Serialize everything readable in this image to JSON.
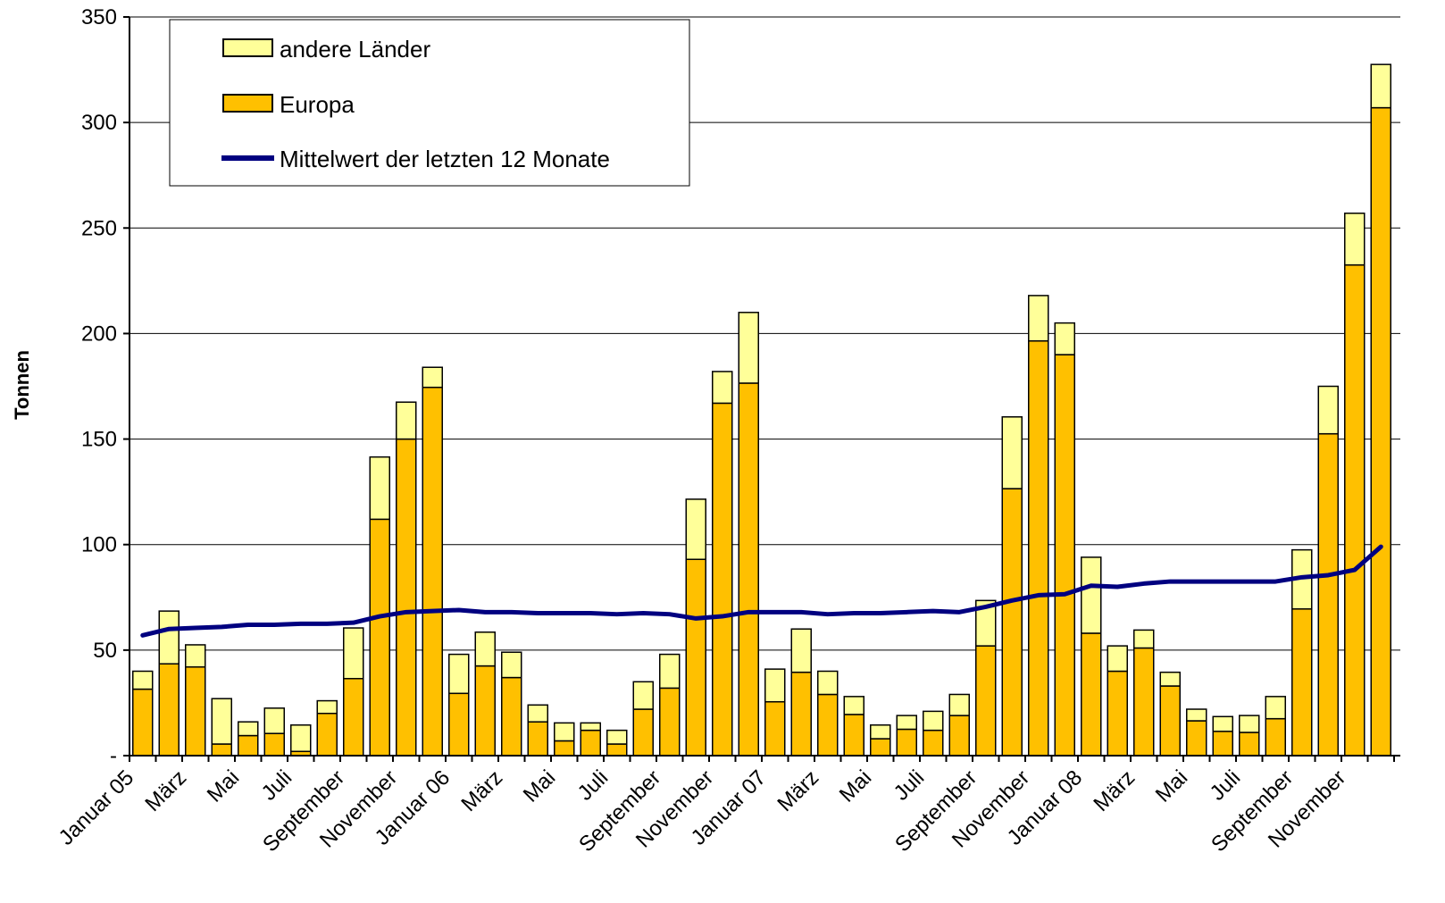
{
  "chart_data": {
    "type": "bar",
    "stacked": true,
    "ylabel": "Tonnen",
    "ylim": [
      0,
      350
    ],
    "y_ticks": [
      "-",
      "50",
      "100",
      "150",
      "200",
      "250",
      "300",
      "350"
    ],
    "grid": true,
    "legend_position": "top-left",
    "x": [
      "Jan 05",
      "Feb 05",
      "Mär 05",
      "Apr 05",
      "Mai 05",
      "Jun 05",
      "Jul 05",
      "Aug 05",
      "Sep 05",
      "Okt 05",
      "Nov 05",
      "Dez 05",
      "Jan 06",
      "Feb 06",
      "Mär 06",
      "Apr 06",
      "Mai 06",
      "Jun 06",
      "Jul 06",
      "Aug 06",
      "Sep 06",
      "Okt 06",
      "Nov 06",
      "Dez 06",
      "Jan 07",
      "Feb 07",
      "Mär 07",
      "Apr 07",
      "Mai 07",
      "Jun 07",
      "Jul 07",
      "Aug 07",
      "Sep 07",
      "Okt 07",
      "Nov 07",
      "Dez 07",
      "Jan 08",
      "Feb 08",
      "Mär 08",
      "Apr 08",
      "Mai 08",
      "Jun 08",
      "Jul 08",
      "Aug 08",
      "Sep 08",
      "Okt 08",
      "Nov 08",
      "Dez 08"
    ],
    "tick_labels": [
      {
        "index": 0,
        "label": "Januar 05"
      },
      {
        "index": 2,
        "label": "März"
      },
      {
        "index": 4,
        "label": "Mai"
      },
      {
        "index": 6,
        "label": "Juli"
      },
      {
        "index": 8,
        "label": "September"
      },
      {
        "index": 10,
        "label": "November"
      },
      {
        "index": 12,
        "label": "Januar 06"
      },
      {
        "index": 14,
        "label": "März"
      },
      {
        "index": 16,
        "label": "Mai"
      },
      {
        "index": 18,
        "label": "Juli"
      },
      {
        "index": 20,
        "label": "September"
      },
      {
        "index": 22,
        "label": "November"
      },
      {
        "index": 24,
        "label": "Januar 07"
      },
      {
        "index": 26,
        "label": "März"
      },
      {
        "index": 28,
        "label": "Mai"
      },
      {
        "index": 30,
        "label": "Juli"
      },
      {
        "index": 32,
        "label": "September"
      },
      {
        "index": 34,
        "label": "November"
      },
      {
        "index": 36,
        "label": "Januar 08"
      },
      {
        "index": 38,
        "label": "März"
      },
      {
        "index": 40,
        "label": "Mai"
      },
      {
        "index": 42,
        "label": "Juli"
      },
      {
        "index": 44,
        "label": "September"
      },
      {
        "index": 46,
        "label": "November"
      }
    ],
    "series": [
      {
        "name": "Europa",
        "kind": "bar",
        "color": "#FFC000",
        "values": [
          31.5,
          43.5,
          42,
          5.5,
          9.5,
          10.5,
          2,
          20,
          36.5,
          112,
          150,
          174.5,
          29.5,
          42.5,
          37,
          16,
          7,
          12,
          5.5,
          22,
          32,
          93,
          167,
          176.5,
          25.5,
          39.5,
          29,
          19.5,
          8,
          12.5,
          12,
          19,
          52,
          126.5,
          196.5,
          190,
          58,
          40,
          51,
          33,
          16.5,
          11.5,
          11,
          17.5,
          69.5,
          152.5,
          232.5,
          307
        ]
      },
      {
        "name": "andere Länder",
        "kind": "bar",
        "color": "#FFFF99",
        "values": [
          8.5,
          25,
          10.5,
          21.5,
          6.5,
          12,
          12.5,
          6,
          24,
          29.5,
          17.5,
          9.5,
          18.5,
          16,
          12,
          8,
          8.5,
          3.5,
          6.5,
          13,
          16,
          28.5,
          15,
          33.5,
          15.5,
          20.5,
          11,
          8.5,
          6.5,
          6.5,
          9,
          10,
          21.5,
          34,
          21.5,
          15,
          36,
          12,
          8.5,
          6.5,
          5.5,
          7,
          8,
          10.5,
          28,
          22.5,
          24.5,
          20.5
        ]
      },
      {
        "name": "Mittelwert der letzten 12 Monate",
        "kind": "line",
        "color": "#000080",
        "values": [
          57,
          60,
          60.5,
          61,
          62,
          62,
          62.5,
          62.5,
          63,
          66,
          68,
          68.5,
          69,
          68,
          68,
          67.5,
          67.5,
          67.5,
          67,
          67.5,
          67,
          65,
          66,
          68,
          68,
          68,
          67,
          67.5,
          67.5,
          68,
          68.5,
          68,
          70.5,
          73.5,
          76,
          76.5,
          80.5,
          80,
          81.5,
          82.5,
          82.5,
          82.5,
          82.5,
          82.5,
          84.5,
          85.5,
          88,
          99
        ]
      }
    ]
  }
}
